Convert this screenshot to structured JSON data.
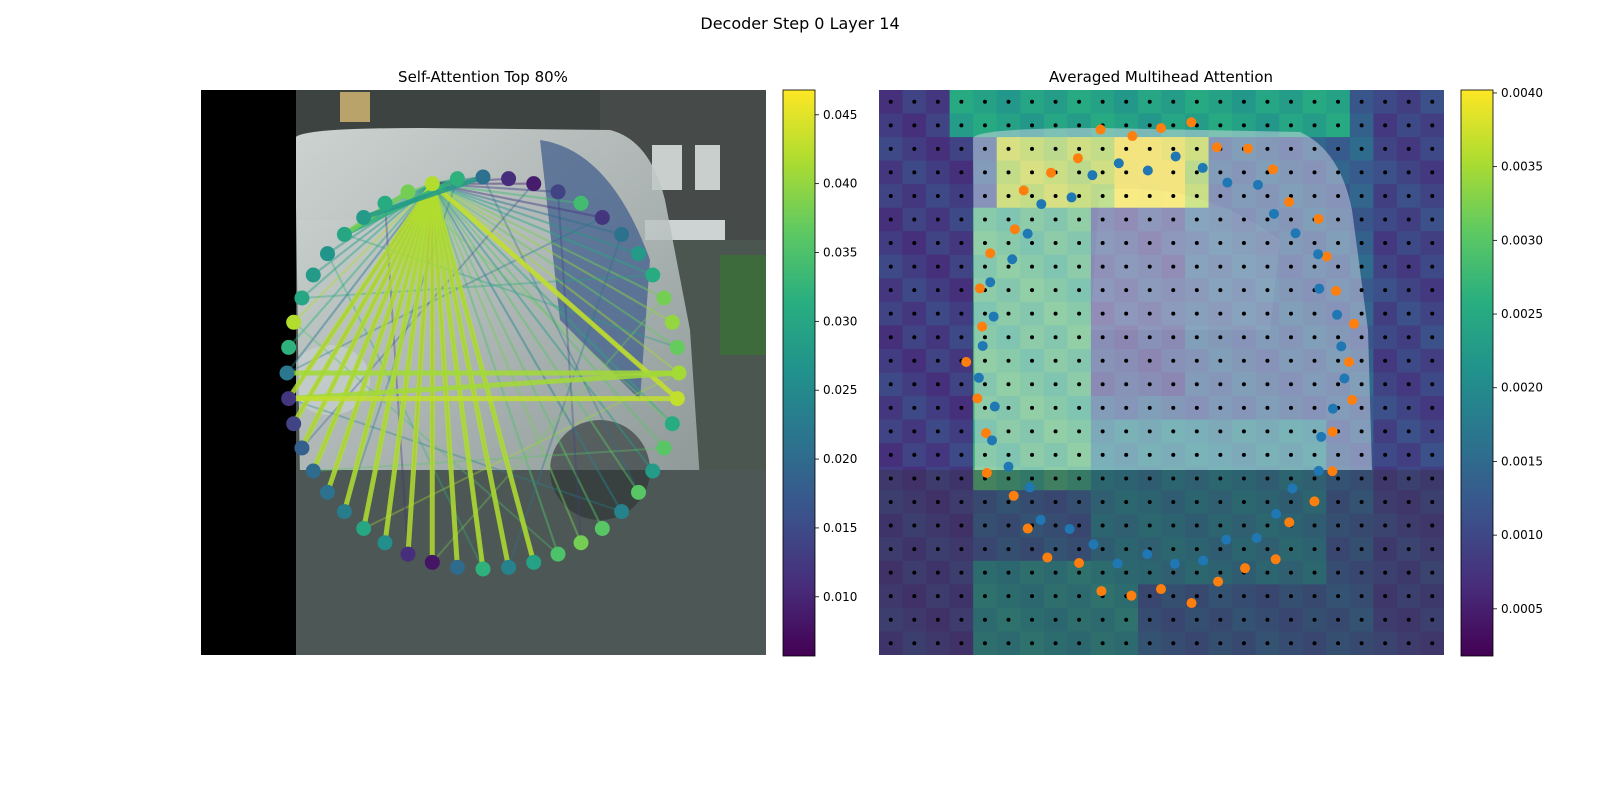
{
  "figure": {
    "title": "Decoder Step 0 Layer 14"
  },
  "chart_data": [
    {
      "type": "network-overlay",
      "title": "Self-Attention Top 80%",
      "node_count": 48,
      "highlight_node": 34,
      "colormap": "viridis",
      "colorbar": {
        "range": [
          0.0057,
          0.0468
        ],
        "ticks": [
          0.01,
          0.015,
          0.02,
          0.025,
          0.03,
          0.035,
          0.04,
          0.045
        ],
        "tick_labels": [
          "0.010",
          "0.015",
          "0.020",
          "0.025",
          "0.030",
          "0.035",
          "0.040",
          "0.045"
        ]
      },
      "node_values": [
        0.041,
        0.043,
        0.031,
        0.036,
        0.028,
        0.036,
        0.024,
        0.036,
        0.038,
        0.035,
        0.029,
        0.024,
        0.032,
        0.02,
        0.008,
        0.011,
        0.026,
        0.03,
        0.023,
        0.021,
        0.02,
        0.018,
        0.014,
        0.012,
        0.022,
        0.032,
        0.042,
        0.03,
        0.028,
        0.027,
        0.03,
        0.028,
        0.031,
        0.038,
        0.042,
        0.032,
        0.021,
        0.011,
        0.009,
        0.014,
        0.034,
        0.012,
        0.021,
        0.028,
        0.031,
        0.038,
        0.04,
        0.037
      ],
      "strong_edges": [
        [
          34,
          1
        ],
        [
          34,
          17
        ],
        [
          34,
          18
        ],
        [
          34,
          19
        ],
        [
          34,
          20
        ],
        [
          34,
          21
        ],
        [
          34,
          22
        ],
        [
          34,
          23
        ],
        [
          34,
          13
        ],
        [
          34,
          14
        ],
        [
          34,
          15
        ],
        [
          34,
          16
        ],
        [
          34,
          12
        ],
        [
          34,
          11
        ],
        [
          34,
          10
        ],
        [
          23,
          0
        ],
        [
          23,
          1
        ],
        [
          24,
          0
        ],
        [
          30,
          35
        ],
        [
          30,
          33
        ],
        [
          31,
          36
        ]
      ]
    },
    {
      "type": "heatmap-overlay",
      "title": "Averaged Multihead Attention",
      "grid": [
        24,
        24
      ],
      "colormap": "viridis",
      "colorbar": {
        "range": [
          0.00018,
          0.00402
        ],
        "ticks": [
          0.0005,
          0.001,
          0.0015,
          0.002,
          0.0025,
          0.003,
          0.0035,
          0.004
        ],
        "tick_labels": [
          "0.0005",
          "0.0010",
          "0.0015",
          "0.0020",
          "0.0025",
          "0.0030",
          "0.0035",
          "0.0040"
        ]
      },
      "series": [
        {
          "color": "#ff7f0e",
          "point_count": 40
        },
        {
          "color": "#1f77b4",
          "point_count": 40
        }
      ]
    }
  ]
}
